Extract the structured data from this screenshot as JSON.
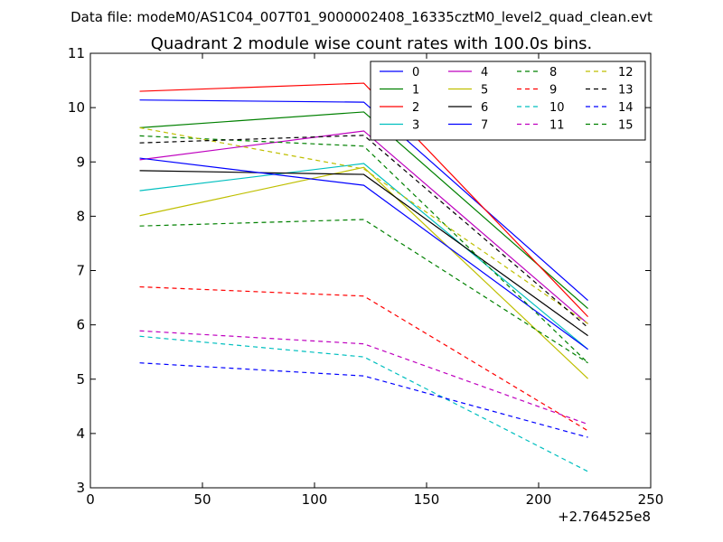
{
  "chart_data": {
    "type": "line",
    "supertitle": "Data file: modeM0/AS1C04_007T01_9000002408_16335cztM0_level2_quad_clean.evt",
    "title": "Quadrant 2 module wise count rates with 100.0s bins.",
    "xlabel": "",
    "ylabel": "",
    "x_offset_label": "+2.764525e8",
    "xlim": [
      0,
      250
    ],
    "ylim": [
      3,
      11
    ],
    "x_ticks": [
      "0",
      "50",
      "100",
      "150",
      "200",
      "250"
    ],
    "y_ticks": [
      "3",
      "4",
      "5",
      "6",
      "7",
      "8",
      "9",
      "10",
      "11"
    ],
    "x": [
      22,
      122,
      222
    ],
    "series": [
      {
        "name": "0",
        "color": "#0000ff",
        "dash": false,
        "values": [
          10.14,
          10.1,
          6.45
        ]
      },
      {
        "name": "1",
        "color": "#008000",
        "dash": false,
        "values": [
          9.63,
          9.92,
          6.3
        ]
      },
      {
        "name": "2",
        "color": "#ff0000",
        "dash": false,
        "values": [
          10.3,
          10.45,
          6.15
        ]
      },
      {
        "name": "3",
        "color": "#00bfbf",
        "dash": false,
        "values": [
          8.47,
          8.97,
          5.55
        ]
      },
      {
        "name": "4",
        "color": "#bf00bf",
        "dash": false,
        "values": [
          9.04,
          9.57,
          6.02
        ]
      },
      {
        "name": "5",
        "color": "#bfbf00",
        "dash": false,
        "values": [
          8.01,
          8.9,
          5.01
        ]
      },
      {
        "name": "6",
        "color": "#000000",
        "dash": false,
        "values": [
          8.84,
          8.77,
          5.8
        ]
      },
      {
        "name": "7",
        "color": "#0000ff",
        "dash": false,
        "values": [
          9.07,
          8.57,
          5.55
        ]
      },
      {
        "name": "8",
        "color": "#008000",
        "dash": true,
        "values": [
          9.48,
          9.29,
          5.3
        ]
      },
      {
        "name": "9",
        "color": "#ff0000",
        "dash": true,
        "values": [
          6.7,
          6.53,
          4.05
        ]
      },
      {
        "name": "10",
        "color": "#00bfbf",
        "dash": true,
        "values": [
          5.79,
          5.41,
          3.3
        ]
      },
      {
        "name": "11",
        "color": "#bf00bf",
        "dash": true,
        "values": [
          5.89,
          5.65,
          4.17
        ]
      },
      {
        "name": "12",
        "color": "#bfbf00",
        "dash": true,
        "values": [
          9.63,
          8.87,
          6.02
        ]
      },
      {
        "name": "13",
        "color": "#000000",
        "dash": true,
        "values": [
          9.35,
          9.49,
          5.95
        ]
      },
      {
        "name": "14",
        "color": "#0000ff",
        "dash": true,
        "values": [
          5.3,
          5.06,
          3.93
        ]
      },
      {
        "name": "15",
        "color": "#008000",
        "dash": true,
        "values": [
          7.82,
          7.94,
          5.3
        ]
      }
    ],
    "legend_position": "top-right",
    "legend_columns": 4,
    "grid": false
  }
}
